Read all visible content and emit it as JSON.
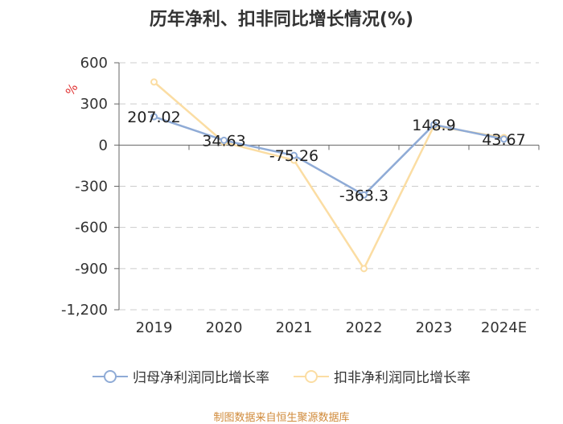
{
  "chart_data": {
    "type": "line",
    "title": "历年净利、扣非同比增长情况(%)",
    "ylabel": "%",
    "xlabel": "",
    "categories": [
      "2019",
      "2020",
      "2021",
      "2022",
      "2023",
      "2024E"
    ],
    "ylim": [
      -1200,
      600
    ],
    "yticks": [
      600,
      300,
      0,
      -300,
      -600,
      -900,
      -1200
    ],
    "ytick_labels": [
      "600",
      "300",
      "0",
      "-300",
      "-600",
      "-900",
      "-1,200"
    ],
    "series": [
      {
        "name": "归母净利润同比增长率",
        "color": "#8fabd6",
        "values": [
          207.02,
          34.63,
          -75.26,
          -363.3,
          148.9,
          43.67
        ],
        "labels": [
          "207.02",
          "34.63",
          "-75.26",
          "-363.3",
          "148.9",
          "43.67"
        ]
      },
      {
        "name": "扣非净利润同比增长率",
        "color": "#fbdda3",
        "values": [
          460,
          20,
          -110,
          -900,
          140,
          55
        ]
      }
    ],
    "legend_position": "bottom"
  },
  "source": "制图数据来自恒生聚源数据库"
}
